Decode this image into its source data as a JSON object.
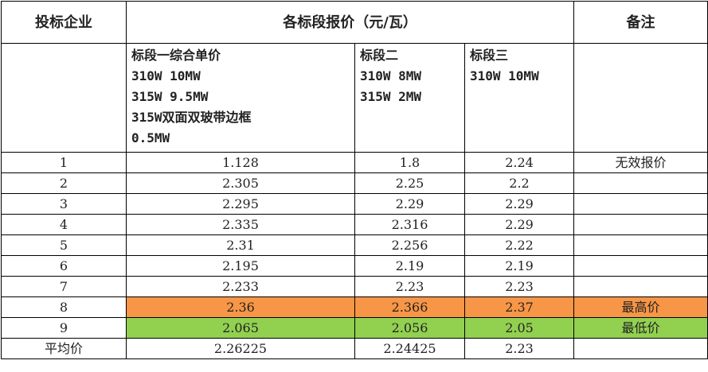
{
  "table": {
    "header": [
      "投标企业",
      "各标段报价（元/瓦）",
      "备注"
    ],
    "subheader": [
      [
        "标段一综合单价",
        "310W  10MW",
        "315W  9.5MW",
        "315W双面双玻带边框",
        "0.5MW"
      ],
      [
        "标段二",
        "310W  8MW",
        "315W  2MW"
      ],
      [
        "标段三",
        "310W  10MW"
      ]
    ],
    "rows": [
      [
        "1",
        "1.128",
        "1.8",
        "2.24",
        "无效报价"
      ],
      [
        "2",
        "2.305",
        "2.25",
        "2.2"
      ],
      [
        "3",
        "2.295",
        "2.29",
        "2.29"
      ],
      [
        "4",
        "2.335",
        "2.316",
        "2.29"
      ],
      [
        "5",
        "2.31",
        "2.256",
        "2.22"
      ],
      [
        "6",
        "2.195",
        "2.19",
        "2.19"
      ],
      [
        "7",
        "2.233",
        "2.23",
        "2.23"
      ],
      [
        "8",
        "2.36",
        "2.366",
        "2.37",
        "最高价"
      ],
      [
        "9",
        "2.065",
        "2.056",
        "2.05",
        "最低价"
      ],
      [
        "平均价",
        "2.26225",
        "2.24425",
        "2.23"
      ]
    ]
  }
}
